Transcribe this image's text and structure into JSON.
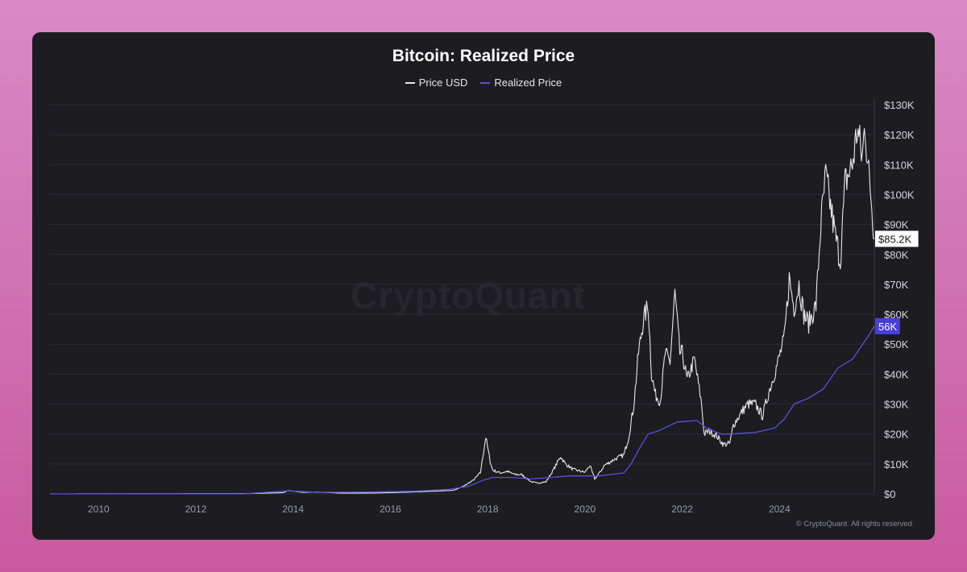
{
  "chart_data": {
    "type": "line",
    "title": "Bitcoin: Realized Price",
    "legend": [
      "Price USD",
      "Realized Price"
    ],
    "legend_position": "top-center",
    "x_ticks": [
      "2010",
      "2012",
      "2014",
      "2016",
      "2018",
      "2020",
      "2022",
      "2024"
    ],
    "y_ticks": [
      "$0",
      "$10K",
      "$20K",
      "$30K",
      "$40K",
      "$50K",
      "$60K",
      "$70K",
      "$80K",
      "$90K",
      "$100K",
      "$110K",
      "$120K",
      "$130K"
    ],
    "xlim": [
      2009.0,
      2025.95
    ],
    "ylim": [
      0,
      130000
    ],
    "grid": true,
    "series": [
      {
        "name": "Price USD",
        "color": "#e8e8ec",
        "points": [
          [
            2009.0,
            0
          ],
          [
            2013.0,
            100
          ],
          [
            2013.2,
            130
          ],
          [
            2013.8,
            400
          ],
          [
            2013.9,
            1100
          ],
          [
            2014.0,
            900
          ],
          [
            2014.2,
            500
          ],
          [
            2014.5,
            600
          ],
          [
            2015.0,
            250
          ],
          [
            2015.5,
            250
          ],
          [
            2016.0,
            400
          ],
          [
            2016.5,
            650
          ],
          [
            2017.0,
            950
          ],
          [
            2017.3,
            1200
          ],
          [
            2017.5,
            2500
          ],
          [
            2017.7,
            4500
          ],
          [
            2017.85,
            7000
          ],
          [
            2017.96,
            19000
          ],
          [
            2018.05,
            11000
          ],
          [
            2018.1,
            8000
          ],
          [
            2018.25,
            7000
          ],
          [
            2018.4,
            7500
          ],
          [
            2018.55,
            6500
          ],
          [
            2018.7,
            6400
          ],
          [
            2018.9,
            4000
          ],
          [
            2019.0,
            3600
          ],
          [
            2019.2,
            4000
          ],
          [
            2019.35,
            8000
          ],
          [
            2019.5,
            12500
          ],
          [
            2019.6,
            10000
          ],
          [
            2019.75,
            8200
          ],
          [
            2020.0,
            7200
          ],
          [
            2020.1,
            9500
          ],
          [
            2020.2,
            5000
          ],
          [
            2020.3,
            7000
          ],
          [
            2020.4,
            9500
          ],
          [
            2020.6,
            11500
          ],
          [
            2020.8,
            13000
          ],
          [
            2020.9,
            19000
          ],
          [
            2021.0,
            29000
          ],
          [
            2021.1,
            47000
          ],
          [
            2021.2,
            58000
          ],
          [
            2021.3,
            63000
          ],
          [
            2021.37,
            40000
          ],
          [
            2021.45,
            33000
          ],
          [
            2021.55,
            31000
          ],
          [
            2021.65,
            47000
          ],
          [
            2021.75,
            44000
          ],
          [
            2021.85,
            67000
          ],
          [
            2021.95,
            47000
          ],
          [
            2022.0,
            47000
          ],
          [
            2022.1,
            38000
          ],
          [
            2022.25,
            45000
          ],
          [
            2022.4,
            30000
          ],
          [
            2022.45,
            20000
          ],
          [
            2022.55,
            21000
          ],
          [
            2022.7,
            19500
          ],
          [
            2022.85,
            16500
          ],
          [
            2022.98,
            16800
          ],
          [
            2023.05,
            23000
          ],
          [
            2023.25,
            28000
          ],
          [
            2023.35,
            30000
          ],
          [
            2023.5,
            30000
          ],
          [
            2023.65,
            26000
          ],
          [
            2023.8,
            35000
          ],
          [
            2023.95,
            43000
          ],
          [
            2024.1,
            52000
          ],
          [
            2024.2,
            72000
          ],
          [
            2024.3,
            62000
          ],
          [
            2024.4,
            70000
          ],
          [
            2024.5,
            60000
          ],
          [
            2024.6,
            57000
          ],
          [
            2024.75,
            63000
          ],
          [
            2024.85,
            90000
          ],
          [
            2024.95,
            106000
          ],
          [
            2025.05,
            96000
          ],
          [
            2025.15,
            86000
          ],
          [
            2025.25,
            78000
          ],
          [
            2025.35,
            104000
          ],
          [
            2025.5,
            110000
          ],
          [
            2025.6,
            122000
          ],
          [
            2025.7,
            112000
          ],
          [
            2025.76,
            124000
          ],
          [
            2025.82,
            109000
          ],
          [
            2025.88,
            100000
          ],
          [
            2025.95,
            85200
          ]
        ]
      },
      {
        "name": "Realized Price",
        "color": "#5b4fe0",
        "points": [
          [
            2009.0,
            0
          ],
          [
            2013.0,
            50
          ],
          [
            2013.9,
            1000
          ],
          [
            2014.5,
            500
          ],
          [
            2015.5,
            600
          ],
          [
            2016.5,
            900
          ],
          [
            2017.2,
            1500
          ],
          [
            2017.6,
            2500
          ],
          [
            2017.9,
            4500
          ],
          [
            2018.1,
            5500
          ],
          [
            2018.5,
            5500
          ],
          [
            2018.9,
            5000
          ],
          [
            2019.3,
            5500
          ],
          [
            2019.7,
            6000
          ],
          [
            2020.3,
            6000
          ],
          [
            2020.8,
            7000
          ],
          [
            2020.95,
            10000
          ],
          [
            2021.15,
            16000
          ],
          [
            2021.3,
            20000
          ],
          [
            2021.5,
            21000
          ],
          [
            2021.9,
            24000
          ],
          [
            2022.3,
            24500
          ],
          [
            2022.5,
            22000
          ],
          [
            2022.8,
            20000
          ],
          [
            2023.0,
            20000
          ],
          [
            2023.5,
            20500
          ],
          [
            2023.9,
            22000
          ],
          [
            2024.1,
            25000
          ],
          [
            2024.3,
            30000
          ],
          [
            2024.6,
            32000
          ],
          [
            2024.9,
            35000
          ],
          [
            2025.2,
            42000
          ],
          [
            2025.5,
            45000
          ],
          [
            2025.8,
            52000
          ],
          [
            2025.95,
            56000
          ]
        ]
      }
    ],
    "labels": {
      "last_price": "$85.2K",
      "realized_price": "56K"
    }
  },
  "footer": {
    "copyright": "© CryptoQuant. All rights reserved",
    "watermark": "CryptoQuant"
  }
}
